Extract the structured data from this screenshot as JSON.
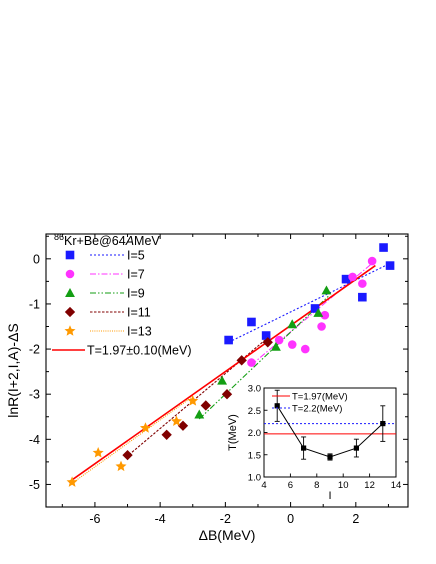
{
  "chart_data": [
    {
      "type": "scatter",
      "xlabel": "ΔB(MeV)",
      "ylabel": "lnR(I+2,I,A)-ΔS",
      "xlim": [
        -7.5,
        3.6
      ],
      "ylim": [
        -5.5,
        0.55
      ],
      "xticks": [
        -6,
        -4,
        -2,
        0,
        2
      ],
      "yticks": [
        -5,
        -4,
        -3,
        -2,
        -1,
        0
      ],
      "x_tick_labels": [
        "-6",
        "-4",
        "-2",
        "0",
        "2"
      ],
      "y_tick_labels": [
        "-5",
        "-4",
        "-3",
        "-2",
        "-1",
        "0"
      ],
      "legend_header": {
        "sup": "86",
        "pre": "Kr+Be@64",
        "ital": "A",
        "post": "MeV"
      },
      "legend_position": "top-left",
      "series": [
        {
          "name": "I=5",
          "marker": "square",
          "color": "#1a1aff",
          "fit_dash": "2,2",
          "x": [
            -1.9,
            -1.2,
            -0.75,
            0.75,
            1.7,
            2.2,
            2.85,
            3.05
          ],
          "y": [
            -1.8,
            -1.4,
            -1.7,
            -1.1,
            -0.45,
            -0.85,
            0.25,
            -0.15
          ],
          "fit": [
            [
              -1.9,
              -1.85
            ],
            [
              3.05,
              -0.1
            ]
          ]
        },
        {
          "name": "I=7",
          "marker": "circle",
          "color": "#ff33ff",
          "fit_dash": "6,2,1.5,2",
          "x": [
            -1.2,
            -0.35,
            0.05,
            0.45,
            0.95,
            1.05,
            2.5,
            2.2,
            1.9
          ],
          "y": [
            -2.3,
            -1.8,
            -1.9,
            -2.0,
            -1.5,
            -1.25,
            -0.05,
            -0.55,
            -0.4
          ],
          "fit": [
            [
              -1.2,
              -2.35
            ],
            [
              2.5,
              -0.1
            ]
          ]
        },
        {
          "name": "I=9",
          "marker": "triangle",
          "color": "#139e13",
          "fit_dash": "6,2,1.5,2,1.5,2",
          "x": [
            -2.8,
            -2.1,
            -0.45,
            0.05,
            0.85,
            1.1
          ],
          "y": [
            -3.45,
            -2.7,
            -1.95,
            -1.45,
            -1.2,
            -0.7
          ],
          "fit": [
            [
              -2.8,
              -3.55
            ],
            [
              1.2,
              -0.8
            ]
          ]
        },
        {
          "name": "I=11",
          "marker": "diamond",
          "color": "#800000",
          "fit_dash": "2.5,1.5",
          "x": [
            -5.0,
            -3.8,
            -3.3,
            -2.6,
            -1.95,
            -1.5,
            -0.7
          ],
          "y": [
            -4.35,
            -3.9,
            -3.7,
            -3.25,
            -3.0,
            -2.25,
            -1.85
          ],
          "fit": [
            [
              -5.05,
              -4.4
            ],
            [
              -0.7,
              -1.75
            ]
          ]
        },
        {
          "name": "I=13",
          "marker": "star",
          "color": "#ff9900",
          "fit_dash": "1,1.2",
          "x": [
            -6.7,
            -5.9,
            -5.2,
            -4.45,
            -3.5,
            -3.0
          ],
          "y": [
            -4.95,
            -4.3,
            -4.6,
            -3.75,
            -3.6,
            -3.15
          ],
          "fit": [
            [
              -6.75,
              -5.0
            ],
            [
              -3.0,
              -3.05
            ]
          ]
        }
      ],
      "global_fit": {
        "name": "T=1.97±0.10(MeV)",
        "color": "#ff0000",
        "line": [
          [
            -6.8,
            -4.95
          ],
          [
            2.6,
            -0.15
          ]
        ]
      }
    },
    {
      "type": "line",
      "xlabel": "I",
      "ylabel": "T(MeV)",
      "xlim": [
        4,
        14
      ],
      "ylim": [
        1.0,
        3.0
      ],
      "xticks": [
        4,
        6,
        8,
        10,
        12,
        14
      ],
      "yticks": [
        1.0,
        1.5,
        2.0,
        2.5,
        3.0
      ],
      "x_tick_labels": [
        "4",
        "6",
        "8",
        "10",
        "12",
        "14"
      ],
      "y_tick_labels": [
        "1.0",
        "1.5",
        "2.0",
        "2.5",
        "3.0"
      ],
      "x": [
        5,
        7,
        9,
        11,
        13
      ],
      "y": [
        2.6,
        1.65,
        1.45,
        1.65,
        2.2
      ],
      "yerr": [
        0.35,
        0.25,
        0.07,
        0.2,
        0.4
      ],
      "ref_lines": [
        {
          "name": "T=1.97(MeV)",
          "value": 1.97,
          "color": "#ff0000",
          "dash": ""
        },
        {
          "name": "T=2.2(MeV)",
          "value": 2.2,
          "color": "#1a1aff",
          "dash": "2,2"
        }
      ]
    }
  ]
}
